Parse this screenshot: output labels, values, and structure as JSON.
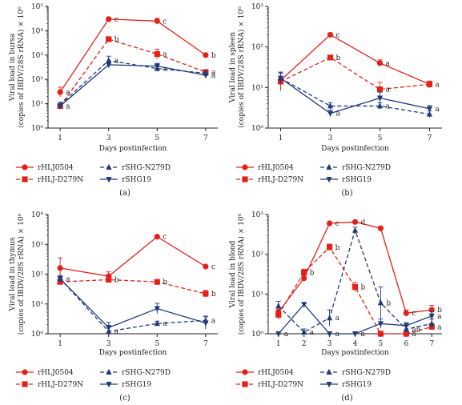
{
  "series_styles": [
    {
      "key": "rHLJ0504",
      "color": "#e32119",
      "dash": "",
      "marker": "circle"
    },
    {
      "key": "rHLJ-D279N",
      "color": "#e32119",
      "dash": "5,3",
      "marker": "square"
    },
    {
      "key": "rSHG-N279D",
      "color": "#1f3b7a",
      "dash": "5,3",
      "marker": "triangle-up"
    },
    {
      "key": "rSHG19",
      "color": "#1f3b7a",
      "dash": "",
      "marker": "triangle-down"
    }
  ],
  "chart_data": [
    {
      "type": "line",
      "panel_label": "(a)",
      "ylabel_line1": "Viral load in bursa",
      "ylabel_line2": "(copies of IBDV/28S rRNA) × 10⁶",
      "xlabel": "Days postinfection",
      "log_scale": true,
      "y_ticks": [
        1,
        10,
        100,
        1000,
        10000,
        100000
      ],
      "y_tick_labels": [
        "10⁰",
        "10¹",
        "10²",
        "10³",
        "10⁴",
        "10⁵"
      ],
      "x": [
        1,
        3,
        5,
        7
      ],
      "x_tick_labels": [
        "1",
        "3",
        "5",
        "7"
      ],
      "xlim": [
        0.5,
        7.5
      ],
      "ylim": [
        1,
        100000
      ],
      "series": [
        {
          "name": "rHLJ0504",
          "values": [
            30,
            30000,
            25000,
            1000
          ],
          "err": [
            1.6,
            1.2,
            1.3,
            1.1
          ],
          "labels": [
            "a",
            "c",
            "c",
            "b"
          ]
        },
        {
          "name": "rHLJ-D279N",
          "values": [
            8,
            4500,
            1100,
            200
          ],
          "err": [
            1.2,
            1.1,
            1.6,
            1.2
          ],
          "labels": [
            "a",
            "b",
            "a",
            "a"
          ]
        },
        {
          "name": "rSHG-N279D",
          "values": [
            9,
            600,
            280,
            180
          ],
          "err": [
            1.3,
            1.5,
            1.3,
            1.2
          ],
          "labels": [
            "",
            "a",
            "a",
            ""
          ]
        },
        {
          "name": "rSHG19",
          "values": [
            8,
            400,
            350,
            150
          ],
          "err": [
            1.2,
            1.3,
            1.3,
            1.2
          ],
          "labels": [
            "",
            "",
            "",
            "a"
          ]
        }
      ],
      "legend": [
        "rHLJ0504",
        "rSHG-N279D",
        "rHLJ-D279N",
        "rSHG19"
      ]
    },
    {
      "type": "line",
      "panel_label": "(b)",
      "ylabel_line1": "Viral load in spleen",
      "ylabel_line2": "(copies of IBDV/28S rRNA) × 10⁶",
      "xlabel": "Days postinfection",
      "log_scale": true,
      "y_ticks": [
        1,
        10,
        100,
        1000
      ],
      "y_tick_labels": [
        "10⁰",
        "10¹",
        "10²",
        "10³"
      ],
      "x": [
        1,
        3,
        5,
        7
      ],
      "x_tick_labels": [
        "1",
        "3",
        "5",
        "7"
      ],
      "xlim": [
        0.5,
        7.5
      ],
      "ylim": [
        1,
        1000
      ],
      "series": [
        {
          "name": "rHLJ0504",
          "values": [
            15,
            200,
            40,
            12
          ],
          "err": [
            1.6,
            1.1,
            1.2,
            1.2
          ],
          "labels": [
            "",
            "c",
            "a",
            ""
          ]
        },
        {
          "name": "rHLJ-D279N",
          "values": [
            14,
            55,
            9,
            12
          ],
          "err": [
            1.7,
            1.1,
            1.5,
            1.2
          ],
          "labels": [
            "",
            "b",
            "a",
            "a"
          ]
        },
        {
          "name": "rSHG-N279D",
          "values": [
            17,
            3.5,
            3.5,
            2.2
          ],
          "err": [
            1.4,
            1.2,
            1.2,
            1.2
          ],
          "labels": [
            "",
            "",
            "a",
            ""
          ]
        },
        {
          "name": "rSHG19",
          "values": [
            17,
            2.3,
            5.5,
            3
          ],
          "err": [
            1.3,
            1.2,
            1.4,
            1.2
          ],
          "labels": [
            "",
            "a",
            "",
            "a"
          ]
        }
      ],
      "legend": [
        "rHLJ0504",
        "rSHG-N279D",
        "rHLJ-D279N",
        "rSHG19"
      ]
    },
    {
      "type": "line",
      "panel_label": "(c)",
      "ylabel_line1": "Viral load in thymus",
      "ylabel_line2": "(copies of IBDV/28S rRNA) × 10⁶",
      "xlabel": "Days postinfection",
      "log_scale": true,
      "y_ticks": [
        1,
        10,
        100,
        1000,
        10000
      ],
      "y_tick_labels": [
        "10⁰",
        "10¹",
        "10²",
        "10³",
        "10⁴"
      ],
      "x": [
        1,
        3,
        5,
        7
      ],
      "x_tick_labels": [
        "1",
        "3",
        "5",
        "7"
      ],
      "xlim": [
        0.5,
        7.5
      ],
      "ylim": [
        1,
        10000
      ],
      "series": [
        {
          "name": "rHLJ0504",
          "values": [
            160,
            85,
            1800,
            180
          ],
          "err": [
            2.2,
            1.4,
            1.1,
            1.1
          ],
          "labels": [
            "",
            "",
            "c",
            "c"
          ]
        },
        {
          "name": "rHLJ-D279N",
          "values": [
            55,
            65,
            55,
            22
          ],
          "err": [
            1.2,
            1.2,
            1.1,
            1.3
          ],
          "labels": [
            "",
            "b",
            "b",
            "b"
          ]
        },
        {
          "name": "rSHG-N279D",
          "values": [
            70,
            1.2,
            2.2,
            2.8
          ],
          "err": [
            1.2,
            1.6,
            1.2,
            1.4
          ],
          "labels": [
            "a",
            "a",
            "a",
            "a"
          ]
        },
        {
          "name": "rSHG19",
          "values": [
            70,
            1.6,
            7,
            2.3
          ],
          "err": [
            1.3,
            1.5,
            1.5,
            1.6
          ],
          "labels": [
            "",
            "",
            "",
            ""
          ]
        }
      ],
      "legend": [
        "rHLJ0504",
        "rSHG-N279D",
        "rHLJ-D279N",
        "rSHG19"
      ]
    },
    {
      "type": "line",
      "panel_label": "(d)",
      "ylabel_line1": "Viral load in blood",
      "ylabel_line2": "(copies of IBDV/28S rRNA) × 10⁶",
      "xlabel": "Days postinfection",
      "log_scale": true,
      "y_ticks": [
        1,
        10,
        100,
        1000
      ],
      "y_tick_labels": [
        "10⁰",
        "10¹",
        "10²",
        "10³"
      ],
      "x": [
        1,
        2,
        3,
        4,
        5,
        6,
        7
      ],
      "x_tick_labels": [
        "1",
        "2",
        "3",
        "4",
        "5",
        "6",
        "7"
      ],
      "xlim": [
        0.6,
        7.4
      ],
      "ylim": [
        1,
        1000
      ],
      "series": [
        {
          "name": "rHLJ0504",
          "values": [
            3.5,
            25,
            600,
            650,
            450,
            3.3,
            4
          ],
          "err": [
            1.2,
            1.2,
            1.05,
            1.05,
            1.1,
            1.2,
            1.3
          ],
          "labels": [
            "",
            "",
            "c",
            "d",
            "",
            "c",
            "b"
          ]
        },
        {
          "name": "rHLJ-D279N",
          "values": [
            3,
            35,
            150,
            15,
            1,
            1,
            1.5
          ],
          "err": [
            1.3,
            1.2,
            1.2,
            1.3,
            1,
            1,
            1.2
          ],
          "labels": [
            "",
            "b",
            "b",
            "b",
            "",
            "a",
            "a"
          ]
        },
        {
          "name": "rSHG-N279D",
          "values": [
            5,
            1.1,
            2.5,
            400,
            6,
            1.3,
            1.8
          ],
          "err": [
            1.3,
            1.2,
            1.6,
            1.2,
            2.5,
            1.2,
            1.3
          ],
          "labels": [
            "",
            "a",
            "a",
            "",
            "b",
            "ab",
            ""
          ]
        },
        {
          "name": "rSHG19",
          "values": [
            1,
            5.5,
            1,
            1,
            1.8,
            1.6,
            2.8
          ],
          "err": [
            1,
            1.1,
            1,
            1,
            1.3,
            1.2,
            1.3
          ],
          "labels": [
            "a",
            "",
            "a",
            "a",
            "",
            "",
            "a"
          ]
        }
      ],
      "legend": [
        "rHLJ0504",
        "rSHG-N279D",
        "rHLJ-D279N",
        "rSHG19"
      ]
    }
  ]
}
